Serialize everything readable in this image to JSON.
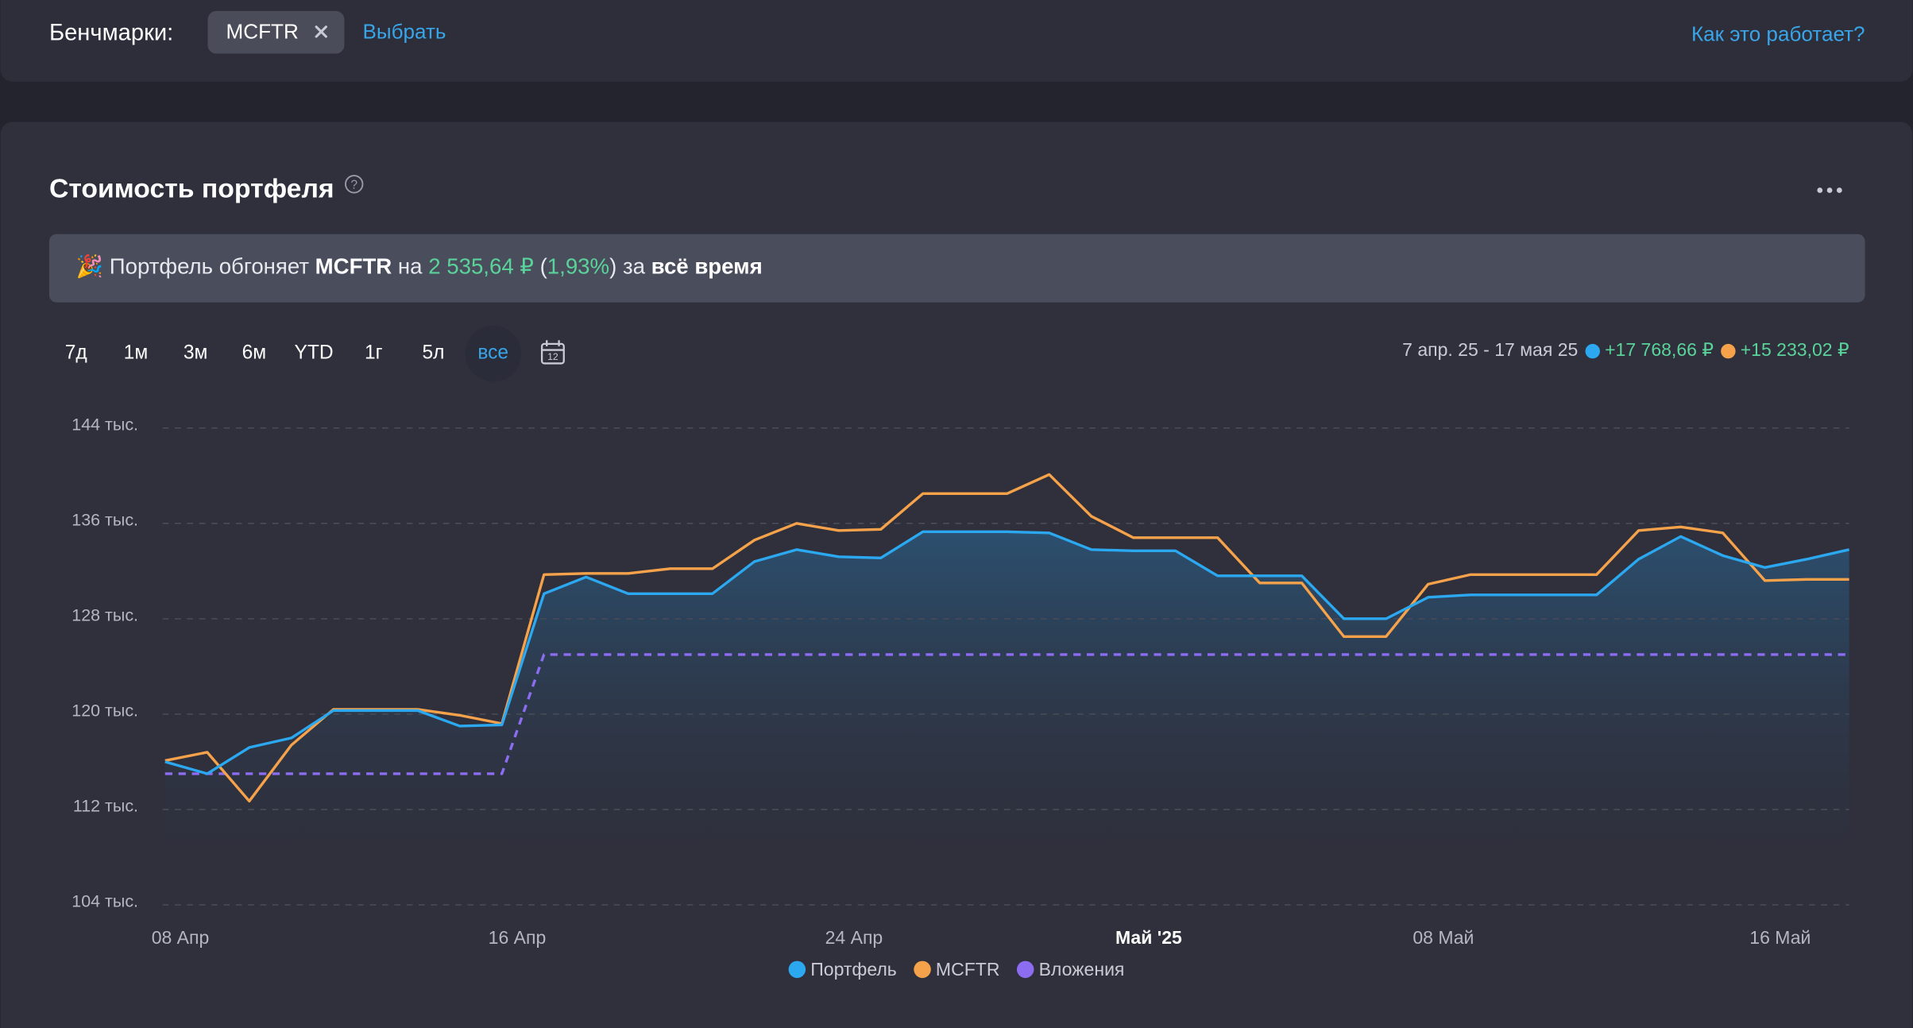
{
  "header": {
    "benchmarks_label": "Бенчмарки:",
    "chip": "MCFTR",
    "choose": "Выбрать",
    "how": "Как это работает?"
  },
  "card": {
    "title": "Стоимость портфеля",
    "banner": {
      "emoji": "🎉",
      "prefix": "Портфель обгоняет",
      "benchmark": "MCFTR",
      "on": "на",
      "amount": "2 535,64 ₽",
      "paren_open": "(",
      "percent": "1,93%",
      "paren_close": ")",
      "suffix": "за",
      "period": "всё время"
    },
    "periods": [
      "7д",
      "1м",
      "3м",
      "6м",
      "YTD",
      "1г",
      "5л",
      "все"
    ],
    "selected_period": 7,
    "calendar_day": "12",
    "range": "7 апр. 25 - 17 мая 25",
    "changes": [
      {
        "color": "#2ba8f0",
        "text": "+17 768,66 ₽"
      },
      {
        "color": "#f6a24a",
        "text": "+15 233,02 ₽"
      }
    ]
  },
  "chart_data": {
    "type": "line",
    "categories": [
      null,
      "08 Апр",
      null,
      null,
      null,
      null,
      null,
      null,
      null,
      "16 Апр",
      null,
      null,
      null,
      null,
      null,
      null,
      null,
      "24 Апр",
      null,
      null,
      null,
      null,
      null,
      null,
      "Май '25",
      null,
      null,
      null,
      null,
      null,
      null,
      "08 Май",
      null,
      null,
      null,
      null,
      null,
      null,
      null,
      "16 Май",
      null
    ],
    "bold_category": 24,
    "ylim": [
      104000,
      144000
    ],
    "yticks": [
      {
        "value": 104000,
        "label": "104 тыс."
      },
      {
        "value": 112000,
        "label": "112 тыс."
      },
      {
        "value": 120000,
        "label": "120 тыс."
      },
      {
        "value": 128000,
        "label": "128 тыс."
      },
      {
        "value": 136000,
        "label": "136 тыс."
      },
      {
        "value": 144000,
        "label": "144 тыс."
      }
    ],
    "grid": true,
    "series": [
      {
        "name": "Портфель",
        "color": "#2ba8f0",
        "area": true,
        "values": [
          116000,
          115000,
          117200,
          118000,
          120300,
          120300,
          120300,
          119000,
          119100,
          130100,
          131500,
          130100,
          130100,
          130100,
          132800,
          133800,
          133200,
          133100,
          135300,
          135300,
          135300,
          135200,
          133800,
          133700,
          133700,
          131600,
          131600,
          131600,
          128000,
          128000,
          129800,
          130000,
          130000,
          130000,
          130000,
          133000,
          134900,
          133300,
          132300,
          133000,
          133800
        ]
      },
      {
        "name": "MCFTR",
        "color": "#f6a24a",
        "values": [
          116100,
          116800,
          112700,
          117400,
          120400,
          120400,
          120400,
          119900,
          119200,
          131700,
          131800,
          131800,
          132200,
          132200,
          134600,
          136000,
          135400,
          135500,
          138500,
          138500,
          138500,
          140100,
          136600,
          134800,
          134800,
          134800,
          131000,
          131000,
          126500,
          126500,
          130900,
          131700,
          131700,
          131700,
          131700,
          135400,
          135700,
          135200,
          131200,
          131300,
          131300
        ]
      },
      {
        "name": "Вложения",
        "color": "#8c6cf0",
        "dashed": true,
        "values": [
          115000,
          115000,
          115000,
          115000,
          115000,
          115000,
          115000,
          115000,
          115000,
          125000,
          125000,
          125000,
          125000,
          125000,
          125000,
          125000,
          125000,
          125000,
          125000,
          125000,
          125000,
          125000,
          125000,
          125000,
          125000,
          125000,
          125000,
          125000,
          125000,
          125000,
          125000,
          125000,
          125000,
          125000,
          125000,
          125000,
          125000,
          125000,
          125000,
          125000,
          125000
        ]
      }
    ]
  }
}
